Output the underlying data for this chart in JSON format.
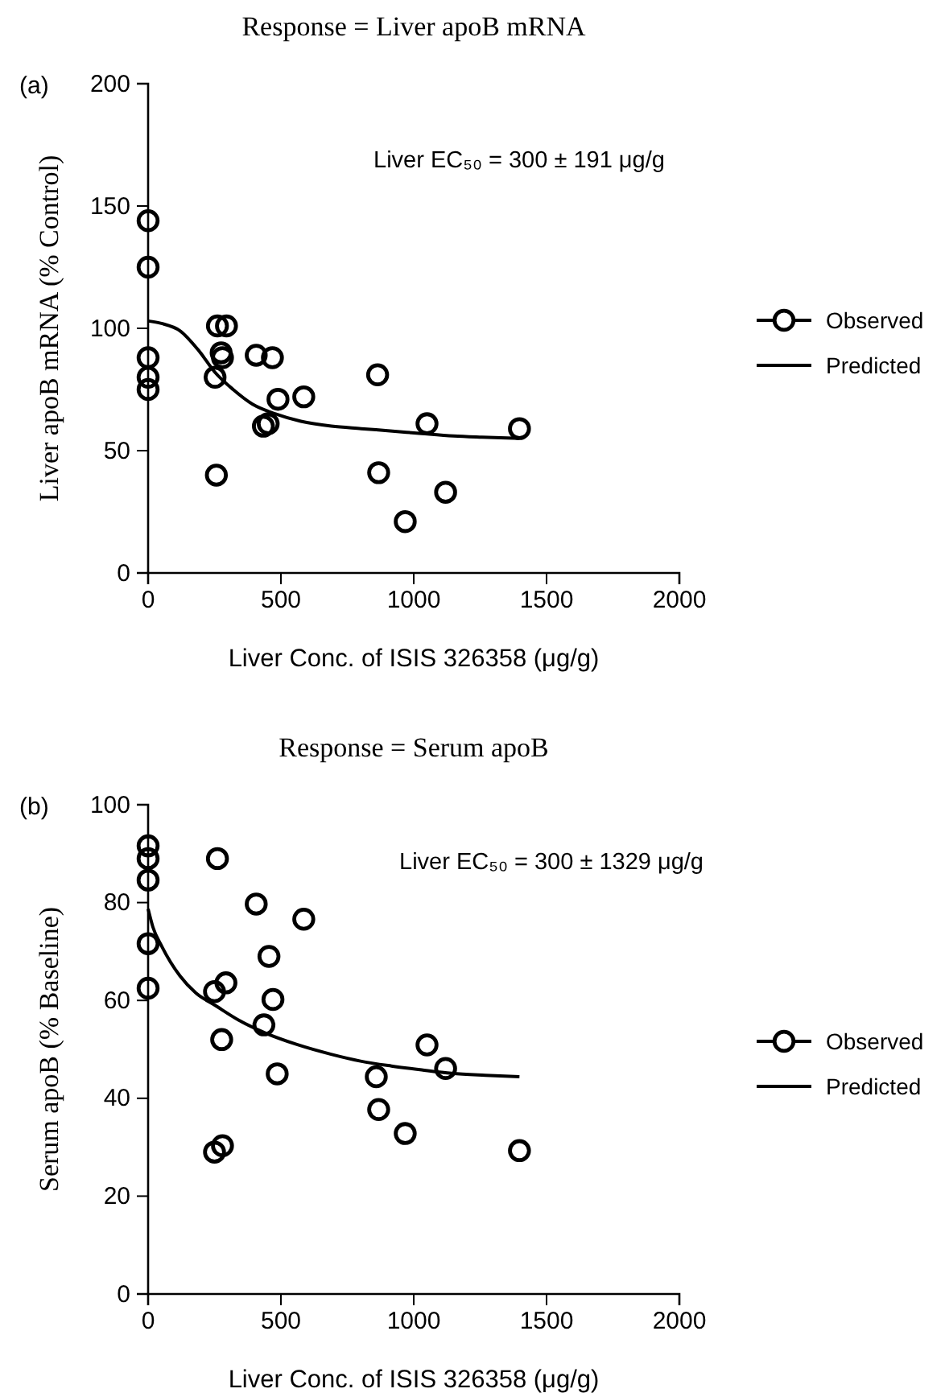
{
  "chart_data": [
    {
      "type": "scatter",
      "title": "Response = Liver apoB mRNA",
      "xlabel": "Liver Conc. of ISIS 326358 (μg/g)",
      "ylabel": "Liver apoB mRNA (% Control)",
      "annotations": [
        "(a)",
        "Liver EC₅₀ = 300 ± 191 μg/g"
      ],
      "xlim": [
        0,
        2000
      ],
      "xticks": [
        0,
        500,
        1000,
        1500,
        2000
      ],
      "ylim": [
        0,
        200
      ],
      "yticks": [
        0,
        50,
        100,
        150,
        200
      ],
      "legend": "right",
      "series": [
        {
          "name": "Observed",
          "marker": "circle",
          "color": "#000000",
          "x": [
            0,
            0,
            0,
            0,
            0,
            252,
            257,
            261,
            295,
            275,
            280,
            407,
            468,
            489,
            586,
            434,
            452,
            864,
            868,
            968,
            1050,
            1120,
            1398
          ],
          "values": [
            144,
            125,
            88,
            80,
            75,
            80,
            40,
            101,
            101,
            90,
            88,
            89,
            88,
            71,
            72,
            60,
            61,
            81,
            41,
            21,
            61,
            33,
            59
          ]
        },
        {
          "name": "Predicted",
          "type": "line",
          "color": "#000000",
          "x": [
            0,
            50,
            120,
            190,
            252,
            320,
            393,
            480,
            575,
            690,
            802,
            920,
            1030,
            1150,
            1257,
            1398
          ],
          "values": [
            103,
            102,
            99,
            91,
            82,
            75,
            69,
            65,
            62,
            60,
            59,
            58,
            57,
            56,
            55.5,
            55
          ]
        }
      ]
    },
    {
      "type": "scatter",
      "title": "Response = Serum apoB",
      "xlabel": "Liver Conc. of ISIS 326358 (μg/g)",
      "ylabel": "Serum apoB (% Baseline)",
      "annotations": [
        "(b)",
        "Liver EC₅₀ = 300 ± 1329 μg/g"
      ],
      "xlim": [
        0,
        2000
      ],
      "xticks": [
        0,
        500,
        1000,
        1500,
        2000
      ],
      "ylim": [
        0,
        100
      ],
      "yticks": [
        0,
        20,
        40,
        60,
        80,
        100
      ],
      "legend": "right",
      "series": [
        {
          "name": "Observed",
          "marker": "circle",
          "color": "#000000",
          "x": [
            0,
            0,
            0,
            0,
            0,
            261,
            407,
            586,
            455,
            250,
            293,
            470,
            436,
            277,
            486,
            859,
            868,
            968,
            1050,
            1120,
            1398,
            250,
            280
          ],
          "values": [
            91.6,
            89,
            84.6,
            71.6,
            62.5,
            89,
            79.7,
            76.6,
            69,
            61.8,
            63.6,
            60.2,
            55,
            52,
            45,
            44.4,
            37.7,
            32.8,
            50.9,
            46.1,
            29.3,
            29,
            30.3
          ]
        },
        {
          "name": "Predicted",
          "type": "line",
          "color": "#000000",
          "x": [
            0,
            18,
            52,
            120,
            180,
            252,
            340,
            439,
            560,
            689,
            800,
            916,
            1030,
            1143,
            1270,
            1398
          ],
          "values": [
            78.7,
            75,
            71,
            65,
            61.5,
            59,
            56,
            53.4,
            51,
            49,
            47.6,
            46.6,
            45.8,
            45.1,
            44.7,
            44.4
          ]
        }
      ]
    }
  ]
}
